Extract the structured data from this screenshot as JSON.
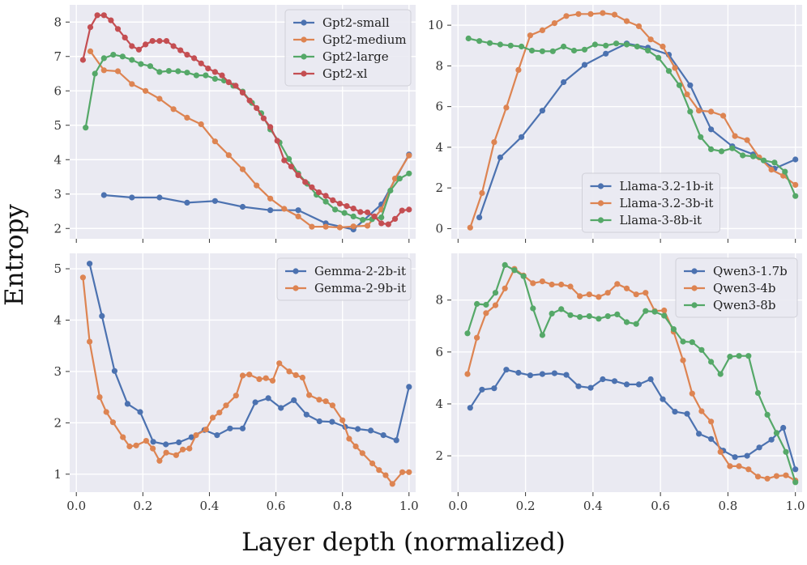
{
  "figure": {
    "xlabel": "Layer depth (normalized)",
    "ylabel": "Entropy",
    "colors": {
      "blue": "#4c72b0",
      "orange": "#dd8452",
      "green": "#55a868",
      "red": "#c44e52",
      "panel_bg": "#eaeaf2",
      "grid": "#ffffff"
    }
  },
  "chart_data": [
    {
      "type": "line",
      "title": "",
      "xlim": [
        -0.02,
        1.02
      ],
      "ylim": [
        1.7,
        8.5
      ],
      "xticks": [
        0.0,
        0.2,
        0.4,
        0.6,
        0.8,
        1.0
      ],
      "yticks": [
        2,
        3,
        4,
        5,
        6,
        7,
        8
      ],
      "show_xtick_labels": false,
      "legend_position": "top-right",
      "series": [
        {
          "name": "Gpt2-small",
          "color": "#4c72b0",
          "x": [
            0.083,
            0.167,
            0.25,
            0.333,
            0.417,
            0.5,
            0.583,
            0.667,
            0.75,
            0.833,
            0.917,
            1.0
          ],
          "y": [
            2.97,
            2.9,
            2.9,
            2.75,
            2.8,
            2.63,
            2.53,
            2.53,
            2.15,
            1.97,
            2.7,
            4.15
          ]
        },
        {
          "name": "Gpt2-medium",
          "color": "#dd8452",
          "x": [
            0.042,
            0.083,
            0.125,
            0.167,
            0.208,
            0.25,
            0.292,
            0.333,
            0.375,
            0.417,
            0.458,
            0.5,
            0.542,
            0.583,
            0.625,
            0.667,
            0.708,
            0.75,
            0.792,
            0.833,
            0.875,
            0.917,
            0.958,
            1.0
          ],
          "y": [
            7.15,
            6.6,
            6.57,
            6.2,
            6.0,
            5.77,
            5.47,
            5.22,
            5.03,
            4.53,
            4.13,
            3.72,
            3.25,
            2.87,
            2.57,
            2.35,
            2.05,
            2.05,
            2.03,
            2.06,
            2.08,
            2.55,
            3.45,
            4.12
          ]
        },
        {
          "name": "Gpt2-large",
          "color": "#55a868",
          "x": [
            0.028,
            0.056,
            0.083,
            0.111,
            0.139,
            0.167,
            0.194,
            0.222,
            0.25,
            0.278,
            0.306,
            0.333,
            0.361,
            0.389,
            0.417,
            0.444,
            0.472,
            0.5,
            0.528,
            0.556,
            0.583,
            0.611,
            0.639,
            0.667,
            0.694,
            0.722,
            0.75,
            0.778,
            0.806,
            0.833,
            0.861,
            0.889,
            0.917,
            0.944,
            0.972,
            1.0
          ],
          "y": [
            4.93,
            6.5,
            6.95,
            7.05,
            7.0,
            6.9,
            6.78,
            6.72,
            6.55,
            6.58,
            6.57,
            6.53,
            6.45,
            6.45,
            6.35,
            6.3,
            6.15,
            5.98,
            5.65,
            5.35,
            4.88,
            4.5,
            4.02,
            3.6,
            3.3,
            2.98,
            2.78,
            2.55,
            2.45,
            2.35,
            2.25,
            2.27,
            2.32,
            3.1,
            3.45,
            3.6
          ]
        },
        {
          "name": "Gpt2-xl",
          "color": "#c44e52",
          "x": [
            0.02,
            0.042,
            0.063,
            0.083,
            0.104,
            0.125,
            0.146,
            0.167,
            0.188,
            0.208,
            0.229,
            0.25,
            0.271,
            0.292,
            0.313,
            0.333,
            0.354,
            0.375,
            0.396,
            0.417,
            0.438,
            0.458,
            0.479,
            0.5,
            0.521,
            0.542,
            0.563,
            0.583,
            0.604,
            0.625,
            0.646,
            0.667,
            0.688,
            0.708,
            0.729,
            0.75,
            0.771,
            0.792,
            0.813,
            0.833,
            0.854,
            0.875,
            0.896,
            0.917,
            0.938,
            0.958,
            0.979,
            1.0
          ],
          "y": [
            6.9,
            7.85,
            8.2,
            8.2,
            8.05,
            7.8,
            7.55,
            7.3,
            7.2,
            7.35,
            7.45,
            7.45,
            7.45,
            7.3,
            7.18,
            7.05,
            6.95,
            6.8,
            6.65,
            6.55,
            6.45,
            6.25,
            6.15,
            5.95,
            5.72,
            5.5,
            5.2,
            4.95,
            4.55,
            3.98,
            3.8,
            3.55,
            3.35,
            3.2,
            3.05,
            2.95,
            2.82,
            2.72,
            2.65,
            2.58,
            2.48,
            2.47,
            2.35,
            2.15,
            2.12,
            2.28,
            2.52,
            2.55
          ]
        }
      ]
    },
    {
      "type": "line",
      "title": "",
      "xlim": [
        -0.02,
        1.02
      ],
      "ylim": [
        -0.5,
        11.0
      ],
      "xticks": [
        0.0,
        0.2,
        0.4,
        0.6,
        0.8,
        1.0
      ],
      "yticks": [
        0,
        2,
        4,
        6,
        8,
        10
      ],
      "show_xtick_labels": false,
      "legend_position": "lower-center",
      "series": [
        {
          "name": "Llama-3.2-1b-it",
          "color": "#4c72b0",
          "x": [
            0.063,
            0.125,
            0.188,
            0.25,
            0.313,
            0.375,
            0.438,
            0.5,
            0.563,
            0.625,
            0.688,
            0.75,
            0.813,
            0.875,
            0.938,
            1.0
          ],
          "y": [
            0.55,
            3.5,
            4.5,
            5.8,
            7.2,
            8.05,
            8.6,
            9.1,
            8.9,
            8.55,
            7.05,
            4.88,
            4.05,
            3.65,
            2.95,
            3.4
          ]
        },
        {
          "name": "Llama-3.2-3b-it",
          "color": "#dd8452",
          "x": [
            0.036,
            0.071,
            0.107,
            0.143,
            0.179,
            0.214,
            0.25,
            0.286,
            0.321,
            0.357,
            0.393,
            0.429,
            0.464,
            0.5,
            0.536,
            0.571,
            0.607,
            0.643,
            0.679,
            0.714,
            0.75,
            0.786,
            0.821,
            0.857,
            0.893,
            0.929,
            0.964,
            1.0
          ],
          "y": [
            0.05,
            1.75,
            4.25,
            5.95,
            7.8,
            9.5,
            9.75,
            10.1,
            10.45,
            10.55,
            10.55,
            10.6,
            10.52,
            10.2,
            9.95,
            9.3,
            8.95,
            7.9,
            6.6,
            5.8,
            5.75,
            5.55,
            4.55,
            4.35,
            3.5,
            2.9,
            2.6,
            2.15
          ]
        },
        {
          "name": "Llama-3-8b-it",
          "color": "#55a868",
          "x": [
            0.031,
            0.063,
            0.094,
            0.125,
            0.156,
            0.188,
            0.219,
            0.25,
            0.281,
            0.313,
            0.344,
            0.375,
            0.406,
            0.438,
            0.469,
            0.5,
            0.531,
            0.563,
            0.594,
            0.625,
            0.656,
            0.688,
            0.719,
            0.75,
            0.781,
            0.813,
            0.844,
            0.875,
            0.906,
            0.938,
            0.969,
            1.0
          ],
          "y": [
            9.35,
            9.22,
            9.12,
            9.05,
            9.0,
            8.95,
            8.75,
            8.72,
            8.72,
            8.95,
            8.75,
            8.8,
            9.05,
            9.0,
            9.1,
            9.05,
            8.95,
            8.75,
            8.4,
            7.75,
            7.05,
            5.75,
            4.5,
            3.9,
            3.8,
            3.95,
            3.6,
            3.55,
            3.35,
            3.25,
            2.8,
            1.6
          ]
        }
      ]
    },
    {
      "type": "line",
      "title": "",
      "xlim": [
        -0.02,
        1.02
      ],
      "ylim": [
        0.65,
        5.3
      ],
      "xticks": [
        0.0,
        0.2,
        0.4,
        0.6,
        0.8,
        1.0
      ],
      "xtick_labels": [
        "0.0",
        "0.2",
        "0.4",
        "0.6",
        "0.8",
        "1.0"
      ],
      "yticks": [
        1,
        2,
        3,
        4,
        5
      ],
      "show_xtick_labels": true,
      "legend_position": "top-right",
      "series": [
        {
          "name": "Gemma-2-2b-it",
          "color": "#4c72b0",
          "x": [
            0.04,
            0.077,
            0.115,
            0.154,
            0.192,
            0.231,
            0.269,
            0.308,
            0.346,
            0.385,
            0.423,
            0.462,
            0.5,
            0.538,
            0.577,
            0.615,
            0.654,
            0.692,
            0.731,
            0.769,
            0.808,
            0.846,
            0.885,
            0.923,
            0.962,
            1.0
          ],
          "y": [
            5.1,
            4.08,
            3.01,
            2.37,
            2.21,
            1.63,
            1.58,
            1.62,
            1.72,
            1.86,
            1.76,
            1.89,
            1.89,
            2.4,
            2.48,
            2.29,
            2.44,
            2.16,
            2.03,
            2.02,
            1.92,
            1.88,
            1.85,
            1.76,
            1.66,
            2.7
          ]
        },
        {
          "name": "Gemma-2-9b-it",
          "color": "#dd8452",
          "x": [
            0.02,
            0.04,
            0.07,
            0.09,
            0.11,
            0.14,
            0.16,
            0.18,
            0.21,
            0.23,
            0.25,
            0.27,
            0.3,
            0.32,
            0.34,
            0.36,
            0.39,
            0.41,
            0.43,
            0.45,
            0.48,
            0.5,
            0.52,
            0.55,
            0.57,
            0.59,
            0.61,
            0.64,
            0.66,
            0.68,
            0.7,
            0.73,
            0.75,
            0.77,
            0.8,
            0.82,
            0.84,
            0.86,
            0.89,
            0.91,
            0.93,
            0.95,
            0.98,
            1.0
          ],
          "y": [
            4.83,
            3.58,
            2.5,
            2.21,
            2.01,
            1.72,
            1.54,
            1.56,
            1.65,
            1.5,
            1.26,
            1.42,
            1.37,
            1.48,
            1.5,
            1.76,
            1.87,
            2.1,
            2.2,
            2.34,
            2.53,
            2.92,
            2.94,
            2.85,
            2.87,
            2.82,
            3.16,
            3.0,
            2.93,
            2.88,
            2.54,
            2.45,
            2.42,
            2.34,
            2.05,
            1.69,
            1.54,
            1.41,
            1.21,
            1.08,
            0.98,
            0.81,
            1.04,
            1.04
          ]
        }
      ]
    },
    {
      "type": "line",
      "title": "",
      "xlim": [
        -0.02,
        1.02
      ],
      "ylim": [
        0.6,
        9.8
      ],
      "xticks": [
        0.0,
        0.2,
        0.4,
        0.6,
        0.8,
        1.0
      ],
      "xtick_labels": [
        "0.0",
        "0.2",
        "0.4",
        "0.6",
        "0.8",
        "1.0"
      ],
      "yticks": [
        2,
        4,
        6,
        8
      ],
      "show_xtick_labels": true,
      "legend_position": "top-right",
      "series": [
        {
          "name": "Qwen3-1.7b",
          "color": "#4c72b0",
          "x": [
            0.036,
            0.071,
            0.107,
            0.143,
            0.179,
            0.214,
            0.25,
            0.286,
            0.321,
            0.357,
            0.393,
            0.429,
            0.464,
            0.5,
            0.536,
            0.571,
            0.607,
            0.643,
            0.679,
            0.714,
            0.75,
            0.786,
            0.821,
            0.857,
            0.893,
            0.929,
            0.964,
            1.0
          ],
          "y": [
            3.85,
            4.55,
            4.6,
            5.32,
            5.2,
            5.1,
            5.15,
            5.18,
            5.12,
            4.68,
            4.62,
            4.95,
            4.88,
            4.75,
            4.75,
            4.95,
            4.18,
            3.7,
            3.62,
            2.85,
            2.65,
            2.2,
            1.95,
            2.0,
            2.32,
            2.62,
            3.08,
            1.48
          ]
        },
        {
          "name": "Qwen3-4b",
          "color": "#dd8452",
          "x": [
            0.028,
            0.056,
            0.083,
            0.111,
            0.139,
            0.167,
            0.194,
            0.222,
            0.25,
            0.278,
            0.306,
            0.333,
            0.361,
            0.389,
            0.417,
            0.444,
            0.472,
            0.5,
            0.528,
            0.556,
            0.583,
            0.611,
            0.639,
            0.667,
            0.694,
            0.722,
            0.75,
            0.778,
            0.806,
            0.833,
            0.861,
            0.889,
            0.917,
            0.944,
            0.972,
            1.0
          ],
          "y": [
            5.15,
            6.55,
            7.5,
            7.8,
            8.45,
            9.2,
            8.95,
            8.65,
            8.72,
            8.6,
            8.6,
            8.52,
            8.15,
            8.22,
            8.12,
            8.28,
            8.62,
            8.45,
            8.22,
            8.28,
            7.58,
            7.6,
            6.78,
            5.68,
            4.4,
            3.72,
            3.32,
            2.15,
            1.6,
            1.6,
            1.48,
            1.2,
            1.12,
            1.22,
            1.25,
            1.05
          ]
        },
        {
          "name": "Qwen3-8b",
          "color": "#55a868",
          "x": [
            0.028,
            0.056,
            0.083,
            0.111,
            0.139,
            0.167,
            0.194,
            0.222,
            0.25,
            0.278,
            0.306,
            0.333,
            0.361,
            0.389,
            0.417,
            0.444,
            0.472,
            0.5,
            0.528,
            0.556,
            0.583,
            0.611,
            0.639,
            0.667,
            0.694,
            0.722,
            0.75,
            0.778,
            0.806,
            0.833,
            0.861,
            0.889,
            0.917,
            0.944,
            0.972,
            1.0
          ],
          "y": [
            6.72,
            7.85,
            7.82,
            8.28,
            9.35,
            9.15,
            8.92,
            7.68,
            6.65,
            7.48,
            7.65,
            7.42,
            7.35,
            7.38,
            7.28,
            7.38,
            7.45,
            7.15,
            7.08,
            7.58,
            7.55,
            7.4,
            6.88,
            6.4,
            6.38,
            6.08,
            5.62,
            5.15,
            5.82,
            5.85,
            5.85,
            4.42,
            3.58,
            2.88,
            2.15,
            0.98
          ]
        }
      ]
    }
  ]
}
